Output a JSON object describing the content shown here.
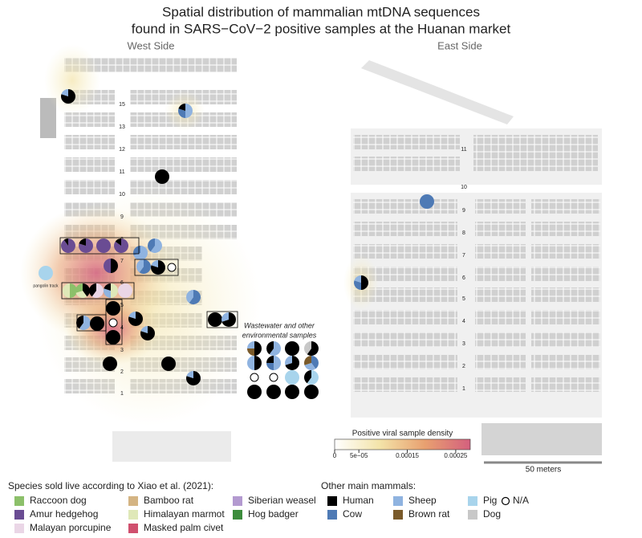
{
  "title_lines": [
    "Spatial distribution of mammalian mtDNA sequences",
    "found in SARS−CoV−2 positive samples at the Huanan market"
  ],
  "west_label": "West Side",
  "east_label": "East Side",
  "west_rows": [
    "15",
    "13",
    "12",
    "11",
    "10",
    "9",
    "8",
    "7",
    "6",
    "5",
    "4",
    "3",
    "2",
    "1"
  ],
  "east_rows": [
    "11",
    "10",
    "9",
    "8",
    "7",
    "6",
    "5",
    "4",
    "3",
    "2",
    "1"
  ],
  "pangolin_label": "pangolin track",
  "wastewater_label": [
    "Wastewater and other",
    "environmental samples"
  ],
  "density": {
    "title": "Positive viral sample density",
    "lim": [
      0,
      0.00028
    ],
    "ticks": [
      0,
      {
        "value": 5e-05,
        "label": "5e−05"
      },
      {
        "value": 0.00015,
        "label": "0.00015"
      },
      {
        "value": 0.00025,
        "label": "0.00025"
      }
    ],
    "colors": [
      "#ffffff",
      "#f3e3a8",
      "#e8a070",
      "#d4607e"
    ]
  },
  "scale_label": "50 meters",
  "species_title": "Species sold live according to Xiao et al. (2021):",
  "species": [
    {
      "name": "Raccoon dog",
      "color": "#8cc06a"
    },
    {
      "name": "Bamboo rat",
      "color": "#d4b483"
    },
    {
      "name": "Siberian weasel",
      "color": "#b39ad0"
    },
    {
      "name": "Amur hedgehog",
      "color": "#6a4c93"
    },
    {
      "name": "Himalayan marmot",
      "color": "#dfe8b8"
    },
    {
      "name": "Hog badger",
      "color": "#3c8c3c"
    },
    {
      "name": "Malayan porcupine",
      "color": "#ead6e6"
    },
    {
      "name": "Masked palm civet",
      "color": "#d0506e"
    }
  ],
  "mammals_title": "Other main mammals:",
  "mammals": [
    {
      "name": "Human",
      "color": "#000000"
    },
    {
      "name": "Sheep",
      "color": "#8fb3e0"
    },
    {
      "name": "Pig",
      "color": "#a8d4ec"
    },
    {
      "name": "N/A",
      "color": "#ffffff"
    },
    {
      "name": "Cow",
      "color": "#4e7ab5"
    },
    {
      "name": "Brown rat",
      "color": "#7a5a2a"
    },
    {
      "name": "Dog",
      "color": "#c8c8c8"
    }
  ],
  "samples": [
    {
      "parts": [
        {
          "species": "Human",
          "share": 80
        },
        {
          "species": "Sheep",
          "share": 20
        }
      ]
    },
    {
      "parts": [
        {
          "species": "Sheep",
          "share": 50
        },
        {
          "species": "Cow",
          "share": 30
        },
        {
          "species": "Human",
          "share": 20
        }
      ]
    },
    {
      "parts": [
        {
          "species": "Human",
          "share": 100
        }
      ]
    },
    {
      "parts": [
        {
          "species": "Amur hedgehog",
          "share": 90
        },
        {
          "species": "Human",
          "share": 10
        }
      ]
    },
    {
      "parts": [
        {
          "species": "Amur hedgehog",
          "share": 80
        },
        {
          "species": "Human",
          "share": 20
        }
      ]
    },
    {
      "parts": [
        {
          "species": "Amur hedgehog",
          "share": 100
        }
      ]
    },
    {
      "parts": [
        {
          "species": "Amur hedgehog",
          "share": 85
        },
        {
          "species": "Human",
          "share": 15
        }
      ]
    },
    {
      "parts": [
        {
          "species": "Sheep",
          "share": 70
        },
        {
          "species": "Cow",
          "share": 30
        }
      ]
    },
    {
      "parts": [
        {
          "species": "Sheep",
          "share": 60
        },
        {
          "species": "Cow",
          "share": 40
        }
      ]
    },
    {
      "parts": [
        {
          "species": "Human",
          "share": 50
        },
        {
          "species": "Amur hedgehog",
          "share": 50
        }
      ]
    },
    {
      "parts": [
        {
          "species": "Cow",
          "share": 60
        },
        {
          "species": "Sheep",
          "share": 40
        }
      ]
    },
    {
      "parts": [
        {
          "species": "Human",
          "share": 80
        },
        {
          "species": "Sheep",
          "share": 20
        }
      ]
    },
    {
      "parts": [
        {
          "species": "N/A",
          "share": 100
        }
      ]
    },
    {
      "parts": [
        {
          "species": "Pig",
          "share": 100
        }
      ]
    },
    {
      "parts": [
        {
          "species": "Raccoon dog",
          "share": 50
        },
        {
          "species": "Himalayan marmot",
          "share": 50
        }
      ]
    },
    {
      "parts": [
        {
          "species": "Human",
          "share": 40
        },
        {
          "species": "Himalayan marmot",
          "share": 30
        },
        {
          "species": "Raccoon dog",
          "share": 30
        }
      ]
    },
    {
      "parts": [
        {
          "species": "Malayan porcupine",
          "share": 60
        },
        {
          "species": "Human",
          "share": 40
        }
      ]
    },
    {
      "parts": [
        {
          "species": "Himalayan marmot",
          "share": 50
        },
        {
          "species": "Sheep",
          "share": 30
        },
        {
          "species": "Human",
          "share": 20
        }
      ]
    },
    {
      "parts": [
        {
          "species": "Malayan porcupine",
          "share": 100
        }
      ]
    },
    {
      "parts": [
        {
          "species": "Human",
          "share": 100
        }
      ]
    },
    {
      "parts": [
        {
          "species": "Cow",
          "share": 60
        },
        {
          "species": "Sheep",
          "share": 40
        }
      ]
    },
    {
      "parts": [
        {
          "species": "Sheep",
          "share": 60
        },
        {
          "species": "Human",
          "share": 40
        }
      ]
    },
    {
      "parts": [
        {
          "species": "Human",
          "share": 100
        }
      ]
    },
    {
      "parts": [
        {
          "species": "N/A",
          "share": 100
        }
      ]
    },
    {
      "parts": [
        {
          "species": "Human",
          "share": 80
        },
        {
          "species": "Sheep",
          "share": 20
        }
      ]
    },
    {
      "parts": [
        {
          "species": "Human",
          "share": 100
        }
      ]
    },
    {
      "parts": [
        {
          "species": "Human",
          "share": 70
        },
        {
          "species": "Sheep",
          "share": 30
        }
      ]
    },
    {
      "parts": [
        {
          "species": "Human",
          "share": 80
        },
        {
          "species": "Sheep",
          "share": 20
        }
      ]
    },
    {
      "parts": [
        {
          "species": "Human",
          "share": 100
        }
      ]
    },
    {
      "parts": [
        {
          "species": "Human",
          "share": 100
        }
      ]
    },
    {
      "parts": [
        {
          "species": "Human",
          "share": 100
        }
      ]
    },
    {
      "parts": [
        {
          "species": "Human",
          "share": 80
        },
        {
          "species": "Sheep",
          "share": 20
        }
      ]
    },
    {
      "parts": [
        {
          "species": "Cow",
          "share": 100
        }
      ]
    },
    {
      "parts": [
        {
          "species": "Human",
          "share": 50
        },
        {
          "species": "Cow",
          "share": 30
        },
        {
          "species": "Sheep",
          "share": 20
        }
      ]
    },
    {
      "parts": [
        {
          "species": "Human",
          "share": 50
        },
        {
          "species": "Brown rat",
          "share": 25
        },
        {
          "species": "Sheep",
          "share": 25
        }
      ]
    },
    {
      "parts": [
        {
          "species": "Sheep",
          "share": 60
        },
        {
          "species": "Human",
          "share": 40
        }
      ]
    },
    {
      "parts": [
        {
          "species": "Human",
          "share": 100
        }
      ]
    },
    {
      "parts": [
        {
          "species": "Human",
          "share": 60
        },
        {
          "species": "Dog",
          "share": 40
        }
      ]
    },
    {
      "parts": [
        {
          "species": "Human",
          "share": 50
        },
        {
          "species": "Sheep",
          "share": 50
        }
      ]
    },
    {
      "parts": [
        {
          "species": "Sheep",
          "share": 50
        },
        {
          "species": "Cow",
          "share": 25
        },
        {
          "species": "Human",
          "share": 25
        }
      ]
    },
    {
      "parts": [
        {
          "species": "Human",
          "share": 70
        },
        {
          "species": "Sheep",
          "share": 30
        }
      ]
    },
    {
      "parts": [
        {
          "species": "Cow",
          "share": 40
        },
        {
          "species": "Sheep",
          "share": 30
        },
        {
          "species": "Brown rat",
          "share": 30
        }
      ]
    },
    {
      "parts": [
        {
          "species": "N/A",
          "share": 100
        }
      ]
    },
    {
      "parts": [
        {
          "species": "N/A",
          "share": 100
        }
      ]
    },
    {
      "parts": [
        {
          "species": "Pig",
          "share": 100
        }
      ]
    },
    {
      "parts": [
        {
          "species": "Pig",
          "share": 60
        },
        {
          "species": "Human",
          "share": 40
        }
      ]
    },
    {
      "parts": [
        {
          "species": "Human",
          "share": 100
        }
      ]
    },
    {
      "parts": [
        {
          "species": "Human",
          "share": 100
        }
      ]
    },
    {
      "parts": [
        {
          "species": "Human",
          "share": 100
        }
      ]
    },
    {
      "parts": [
        {
          "species": "Human",
          "share": 100
        }
      ]
    }
  ]
}
